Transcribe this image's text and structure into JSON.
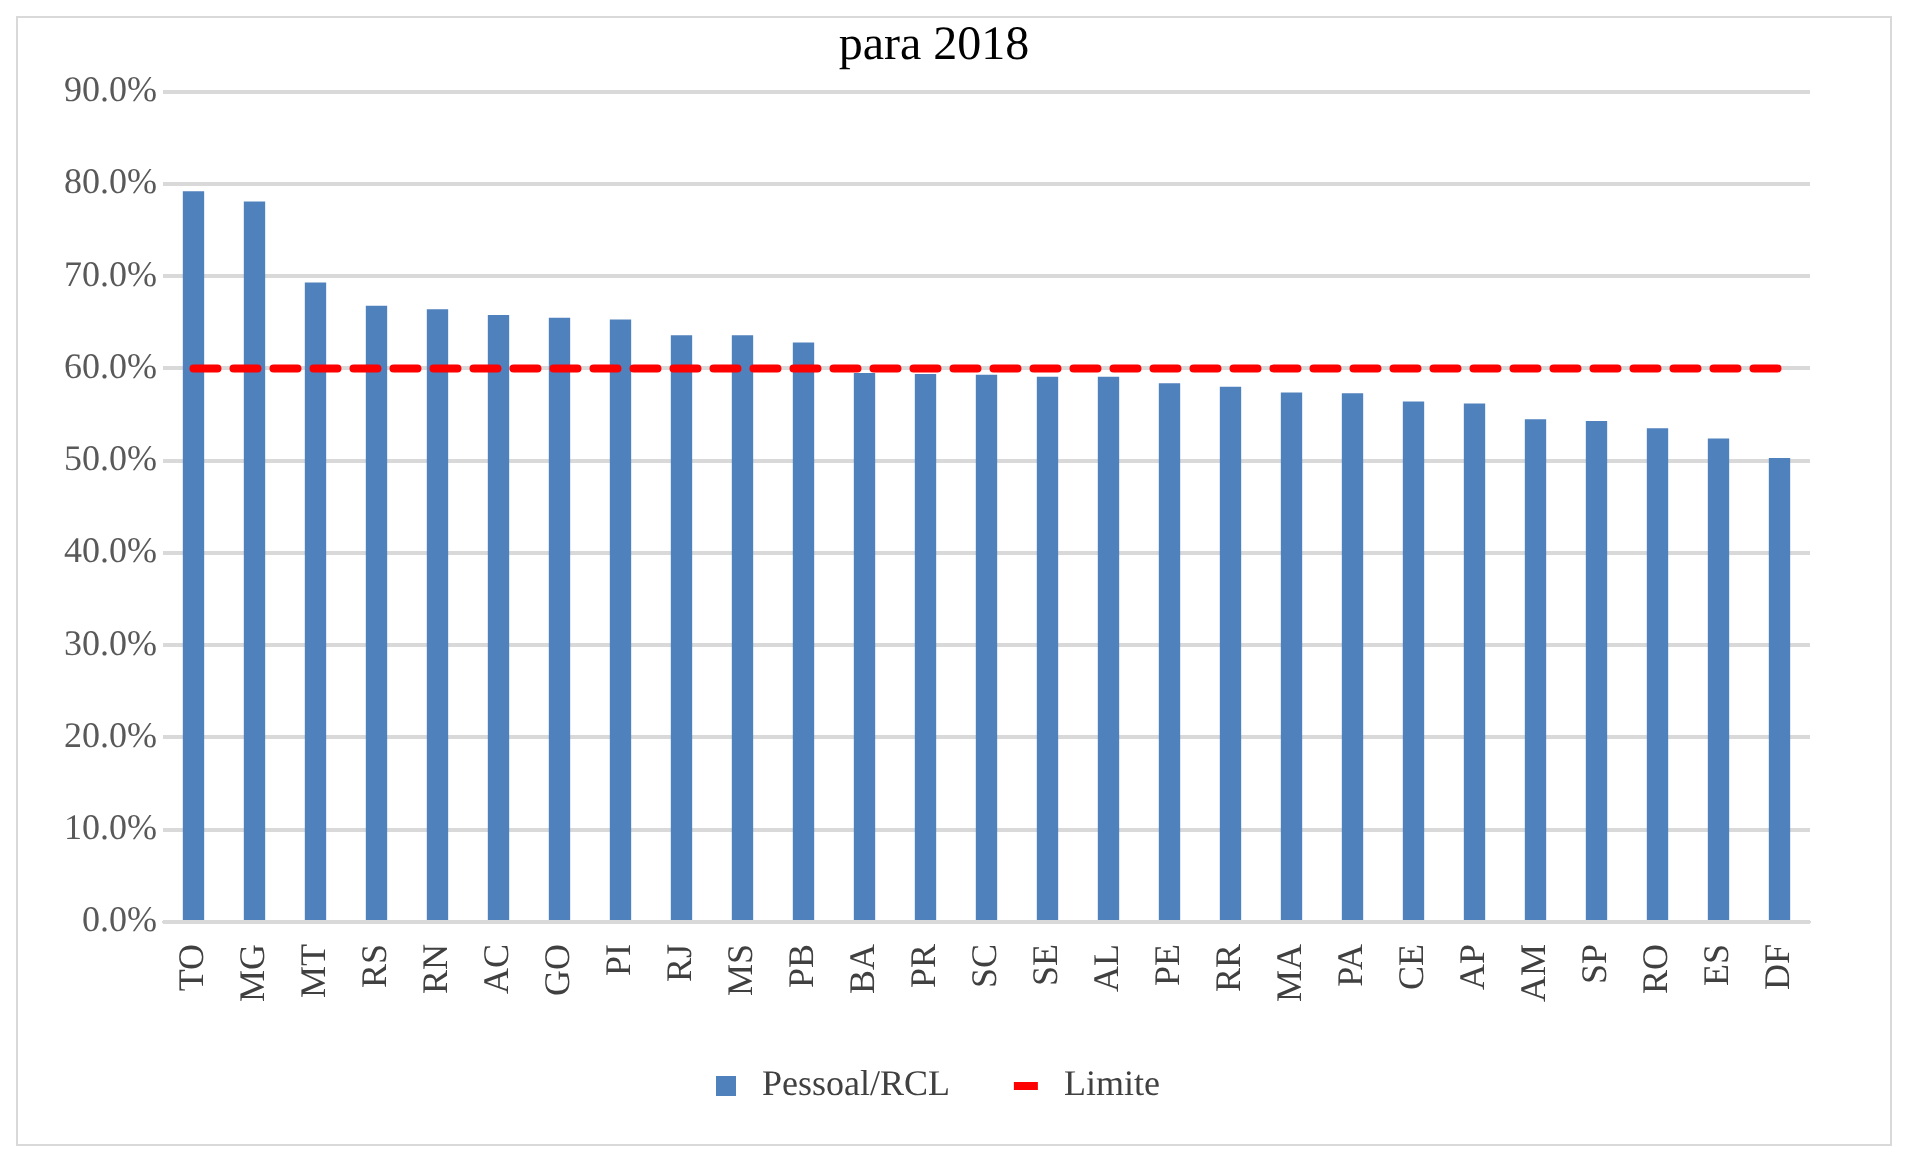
{
  "chart_data": {
    "type": "bar",
    "title": "para 2018",
    "categories": [
      "TO",
      "MG",
      "MT",
      "RS",
      "RN",
      "AC",
      "GO",
      "PI",
      "RJ",
      "MS",
      "PB",
      "BA",
      "PR",
      "SC",
      "SE",
      "AL",
      "PE",
      "RR",
      "MA",
      "PA",
      "CE",
      "AP",
      "AM",
      "SP",
      "RO",
      "ES",
      "DF"
    ],
    "series": [
      {
        "name": "Pessoal/RCL",
        "color": "#4f81bd",
        "values": [
          79.2,
          78.1,
          69.3,
          66.8,
          66.4,
          65.8,
          65.5,
          65.3,
          63.6,
          63.6,
          62.8,
          59.5,
          59.4,
          59.3,
          59.1,
          59.1,
          58.4,
          58.0,
          57.4,
          57.3,
          56.4,
          56.2,
          54.5,
          54.3,
          53.5,
          52.4,
          50.3
        ]
      },
      {
        "name": "Limite",
        "type": "line",
        "color": "#ff0000",
        "line_style": "dashed",
        "values": [
          60,
          60,
          60,
          60,
          60,
          60,
          60,
          60,
          60,
          60,
          60,
          60,
          60,
          60,
          60,
          60,
          60,
          60,
          60,
          60,
          60,
          60,
          60,
          60,
          60,
          60,
          60
        ]
      }
    ],
    "ylim": [
      0,
      90
    ],
    "yticks": [
      {
        "value": 0,
        "label": "0.0%"
      },
      {
        "value": 10,
        "label": "10.0%"
      },
      {
        "value": 20,
        "label": "20.0%"
      },
      {
        "value": 30,
        "label": "30.0%"
      },
      {
        "value": 40,
        "label": "40.0%"
      },
      {
        "value": 50,
        "label": "50.0%"
      },
      {
        "value": 60,
        "label": "60.0%"
      },
      {
        "value": 70,
        "label": "70.0%"
      },
      {
        "value": 80,
        "label": "80.0%"
      },
      {
        "value": 90,
        "label": "90.0%"
      }
    ],
    "grid": "y",
    "legend": "bottom",
    "marker": "none"
  }
}
